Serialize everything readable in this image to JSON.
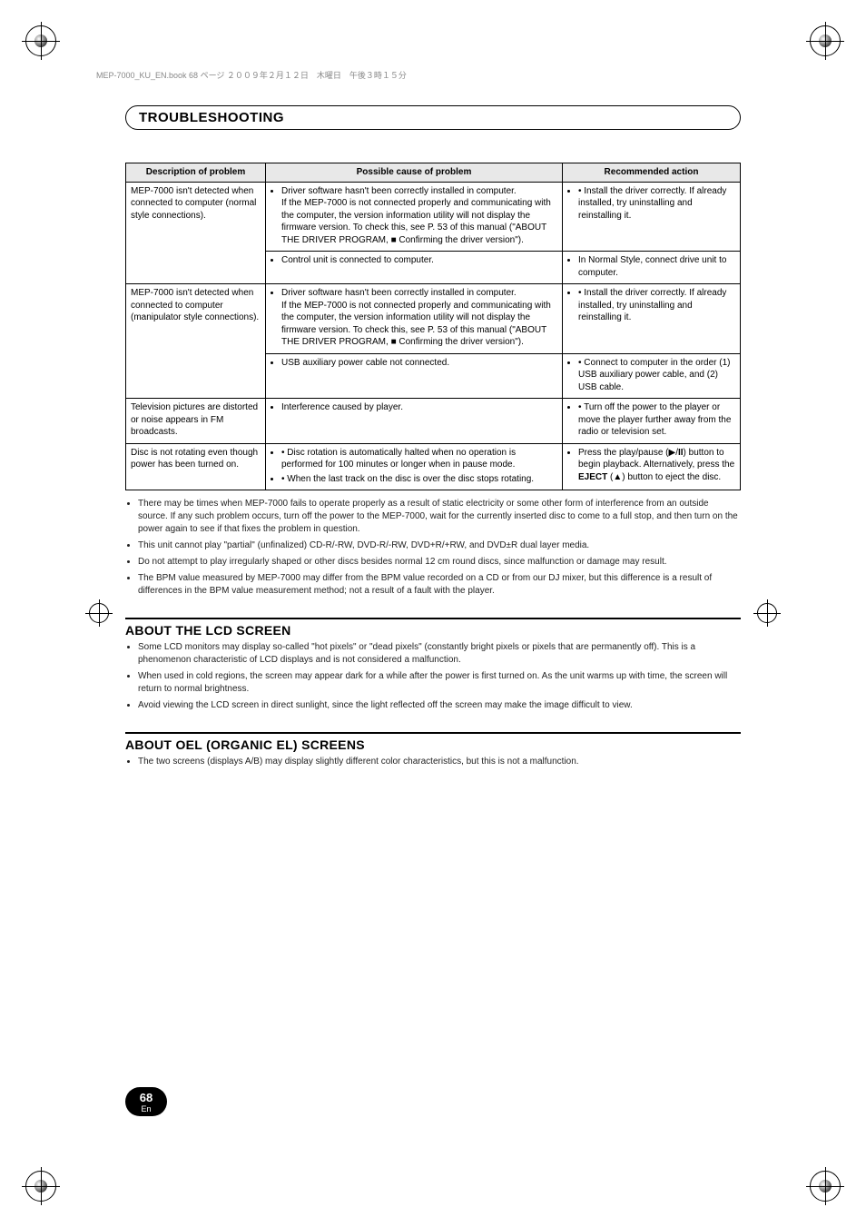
{
  "header_line": "MEP-7000_KU_EN.book  68 ページ  ２００９年２月１２日　木曜日　午後３時１５分",
  "title": "TROUBLESHOOTING",
  "table": {
    "headers": [
      "Description of problem",
      "Possible cause of problem",
      "Recommended action"
    ],
    "rows": [
      {
        "c1": "MEP-7000 isn't detected when connected to computer (normal style connections).",
        "c2": "• Driver software hasn't been correctly installed in computer.\nIf the MEP-7000 is not connected properly and communicating with the computer, the version information utility will not display the firmware version. To check this, see P. 53 of this manual (\"ABOUT THE DRIVER PROGRAM, ■ Confirming the driver version\").",
        "c3": "• Install the driver correctly. If already installed, try uninstalling and reinstalling it."
      },
      {
        "c1": "",
        "c2": "• Control unit is connected to computer.",
        "c3": "• In Normal Style, connect drive unit to computer."
      },
      {
        "c1": "MEP-7000 isn't detected when connected to computer (manipulator style connections).",
        "c2": "• Driver software hasn't been correctly installed in computer.\nIf the MEP-7000 is not connected properly and communicating with the computer, the version information utility will not display the firmware version. To check this, see P. 53 of this manual (\"ABOUT THE DRIVER PROGRAM, ■ Confirming the driver version\").",
        "c3": "• Install the driver correctly. If already installed, try uninstalling and reinstalling it."
      },
      {
        "c1": "",
        "c2": "• USB auxiliary power cable not connected.",
        "c3": "• Connect to computer in the order (1) USB auxiliary power cable, and (2) USB cable."
      },
      {
        "c1": "Television pictures are distorted or noise appears in FM broadcasts.",
        "c2": "• Interference caused by player.",
        "c3": "• Turn off the power to the player or move the player further away from the radio or television set."
      },
      {
        "c1": "Disc is not rotating even though power has been turned on.",
        "c2a": "• Disc rotation is automatically halted when no operation is performed for 100 minutes or longer when in pause mode.",
        "c2b": "• When the last track on the disc is over the disc stops rotating.",
        "c3": "• Press the play/pause (▶/∥) button to begin playback. Alternatively, press the EJECT (▲) button to eject the disc."
      }
    ]
  },
  "notes": [
    "There may be times when MEP-7000 fails to operate properly as a result of static electricity or some other form of interference from an outside source. If any such problem occurs, turn off the power to the MEP-7000, wait for the currently inserted disc to come to a full stop, and then turn on the power again to see if that fixes the problem in question.",
    "This unit cannot play \"partial\" (unfinalized) CD-R/-RW, DVD-R/-RW, DVD+R/+RW, and DVD±R dual layer media.",
    "Do not attempt to play irregularly shaped or other discs besides normal 12 cm round discs, since malfunction or damage may result.",
    "The BPM value measured by MEP-7000 may differ from the BPM value recorded on a CD or from our DJ mixer, but this difference is a result of differences in the BPM value measurement method; not a result of a fault with the player."
  ],
  "lcd": {
    "title": "ABOUT THE LCD SCREEN",
    "items": [
      "Some LCD monitors may display so-called \"hot pixels\" or \"dead pixels\" (constantly bright pixels or pixels that are permanently off). This is a phenomenon characteristic of LCD displays and is not considered a malfunction.",
      "When used in cold regions, the screen may appear dark for a while after the power is first turned on. As the unit warms up with time, the screen will return to normal brightness.",
      "Avoid viewing the LCD screen in direct sunlight, since the light reflected off the screen may make the image difficult to view."
    ]
  },
  "oel": {
    "title": "ABOUT OEL (ORGANIC EL) SCREENS",
    "item": "The two screens (displays A/B) may display slightly different color characteristics, but this is not a malfunction."
  },
  "page_num": "68",
  "page_lang": "En"
}
